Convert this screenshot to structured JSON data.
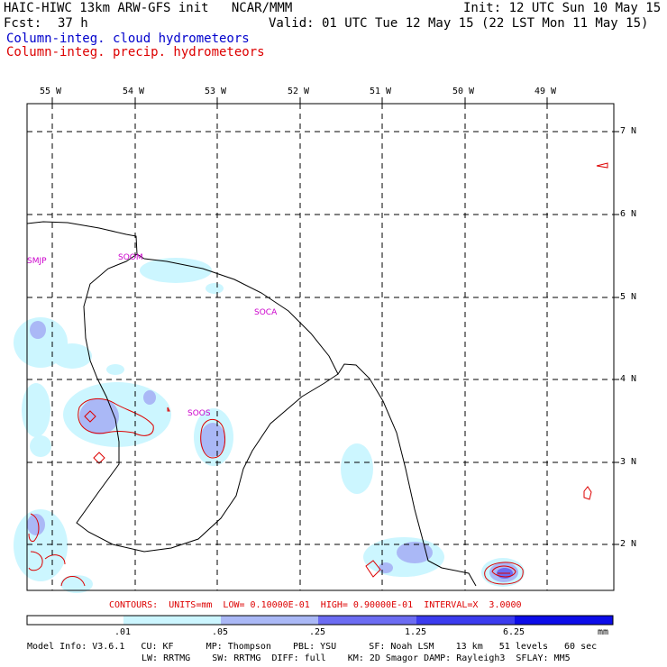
{
  "header": {
    "title_left": "HAIC-HIWC 13km ARW-GFS init   NCAR/MMM",
    "init": "Init: 12 UTC Sun 10 May 15",
    "fcst_label": "Fcst:",
    "fcst_value": "37 h",
    "valid": "Valid: 01 UTC Tue 12 May 15 (22 LST Mon 11 May 15)",
    "field1": "Column-integ. cloud hydrometeors",
    "field2": "Column-integ. precip. hydrometeors"
  },
  "colors": {
    "field1": "#0000cc",
    "field2": "#dd0000",
    "station": "#cc00cc"
  },
  "lon_labels": [
    "55 W",
    "54 W",
    "53 W",
    "52 W",
    "51 W",
    "50 W",
    "49 W"
  ],
  "lat_labels": [
    "7 N",
    "6 N",
    "5 N",
    "4 N",
    "3 N",
    "2 N"
  ],
  "stations": [
    "SMJP",
    "SOOM",
    "SOCA",
    "SOOS"
  ],
  "contours_line": "CONTOURS:  UNITS=mm  LOW= 0.10000E-01  HIGH= 0.90000E-01  INTERVAL=X  3.0000",
  "colorbar": {
    "labels": [
      ".01",
      ".05",
      ".25",
      "1.25",
      "6.25"
    ],
    "units": "mm",
    "colors": [
      "#ffffff",
      "#ccf6ff",
      "#aab8f6",
      "#6c6cf2",
      "#3b3bee",
      "#0c0ce8"
    ]
  },
  "model_info": {
    "line1": "Model Info: V3.6.1   CU: KF      MP: Thompson    PBL: YSU      SF: Noah LSM    13 km   51 levels   60 sec",
    "line2": "LW: RRTMG    SW: RRTMG  DIFF: full    KM: 2D Smagor DAMP: Rayleigh3  SFLAY: MM5"
  }
}
